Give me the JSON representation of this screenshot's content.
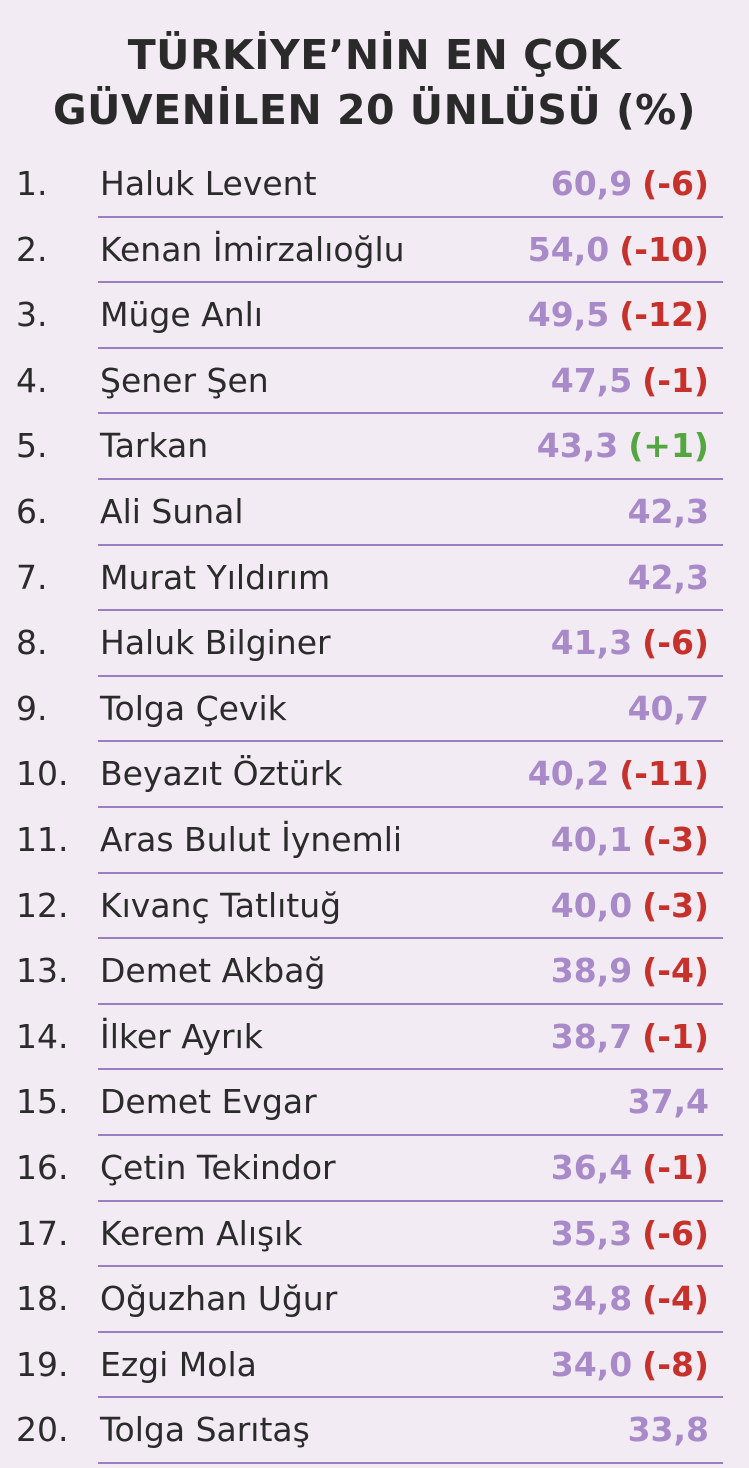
{
  "title": {
    "line1": "TÜRKİYE’NİN EN ÇOK",
    "line2": "GÜVENİLEN 20 ÜNLÜSÜ (%)"
  },
  "colors": {
    "background": "#f2ebf3",
    "value": "#a98ac9",
    "negative_change": "#c6322b",
    "positive_change": "#54a641",
    "divider": "#9b7fc2"
  },
  "chart_data": {
    "type": "table",
    "title": "TÜRKİYE’NİN EN ÇOK GÜVENİLEN 20 ÜNLÜSÜ (%)",
    "rows": [
      {
        "rank": "1.",
        "name": "Haluk Levent",
        "value": "60,9",
        "change": "(-6)"
      },
      {
        "rank": "2.",
        "name": "Kenan İmirzalıoğlu",
        "value": "54,0",
        "change": "(-10)"
      },
      {
        "rank": "3.",
        "name": "Müge Anlı",
        "value": "49,5",
        "change": "(-12)"
      },
      {
        "rank": "4.",
        "name": "Şener Şen",
        "value": "47,5",
        "change": "(-1)"
      },
      {
        "rank": "5.",
        "name": "Tarkan",
        "value": "43,3",
        "change": "(+1)"
      },
      {
        "rank": "6.",
        "name": "Ali Sunal",
        "value": "42,3",
        "change": ""
      },
      {
        "rank": "7.",
        "name": "Murat Yıldırım",
        "value": "42,3",
        "change": ""
      },
      {
        "rank": "8.",
        "name": "Haluk Bilginer",
        "value": "41,3",
        "change": "(-6)"
      },
      {
        "rank": "9.",
        "name": "Tolga Çevik",
        "value": "40,7",
        "change": ""
      },
      {
        "rank": "10.",
        "name": "Beyazıt Öztürk",
        "value": "40,2",
        "change": "(-11)"
      },
      {
        "rank": "11.",
        "name": "Aras Bulut İynemli",
        "value": "40,1",
        "change": "(-3)"
      },
      {
        "rank": "12.",
        "name": "Kıvanç Tatlıtuğ",
        "value": "40,0",
        "change": "(-3)"
      },
      {
        "rank": "13.",
        "name": "Demet Akbağ",
        "value": "38,9",
        "change": "(-4)"
      },
      {
        "rank": "14.",
        "name": "İlker Ayrık",
        "value": "38,7",
        "change": "(-1)"
      },
      {
        "rank": "15.",
        "name": "Demet Evgar",
        "value": "37,4",
        "change": ""
      },
      {
        "rank": "16.",
        "name": "Çetin Tekindor",
        "value": "36,4",
        "change": "(-1)"
      },
      {
        "rank": "17.",
        "name": "Kerem Alışık",
        "value": "35,3",
        "change": "(-6)"
      },
      {
        "rank": "18.",
        "name": "Oğuzhan Uğur",
        "value": "34,8",
        "change": "(-4)"
      },
      {
        "rank": "19.",
        "name": "Ezgi Mola",
        "value": "34,0",
        "change": "(-8)"
      },
      {
        "rank": "20.",
        "name": "Tolga Sarıtaş",
        "value": "33,8",
        "change": ""
      }
    ]
  }
}
